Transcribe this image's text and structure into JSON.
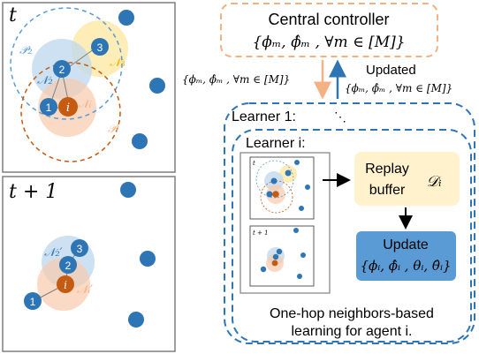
{
  "panels": {
    "t": {
      "label": "t",
      "nodes": [
        "1",
        "2",
        "3",
        "i"
      ],
      "sets": [
        "𝒫₂",
        "𝒩₂",
        "𝒩₃",
        "𝒩ᵢ",
        "𝒫ᵢ"
      ]
    },
    "t1": {
      "label": "t + 1",
      "nodes": [
        "3",
        "2",
        "i",
        "1"
      ],
      "sets": [
        "𝒩₂′",
        "𝒩ᵢ′"
      ]
    }
  },
  "controller": {
    "title": "Central controller",
    "params": "{ϕₘ, ϕ̂ₘ , ∀m ∈ [M]}"
  },
  "arrows": {
    "down_label": "{ϕₘ, ϕ̂ₘ , ∀m ∈ [M]}",
    "up_title": "Updated",
    "up_label": "{ϕₘ, ϕ̂ₘ , ∀m ∈ [M]}"
  },
  "learner1": {
    "title": "Learner 1:",
    "dots": "⋱"
  },
  "learner_i": {
    "title": "Learner i:",
    "thumb_t": "t",
    "thumb_t1": "t + 1"
  },
  "replay": {
    "line1": "Replay",
    "line2": "buffer",
    "symbol": "𝒟ᵢ"
  },
  "update": {
    "line1": "Update",
    "params": "{ϕᵢ, ϕ̂ᵢ , θᵢ, θ̂ᵢ}"
  },
  "caption": {
    "line1": "One-hop neighbors-based",
    "line2": "learning for agent i."
  },
  "colors": {
    "node": "#2e75b6",
    "node_i": "#c55a11",
    "orange_dash": "#f4b183",
    "blue_dash": "#2e75b6",
    "replay_fill": "#fff2cc",
    "update_fill": "#5b9bd5"
  }
}
